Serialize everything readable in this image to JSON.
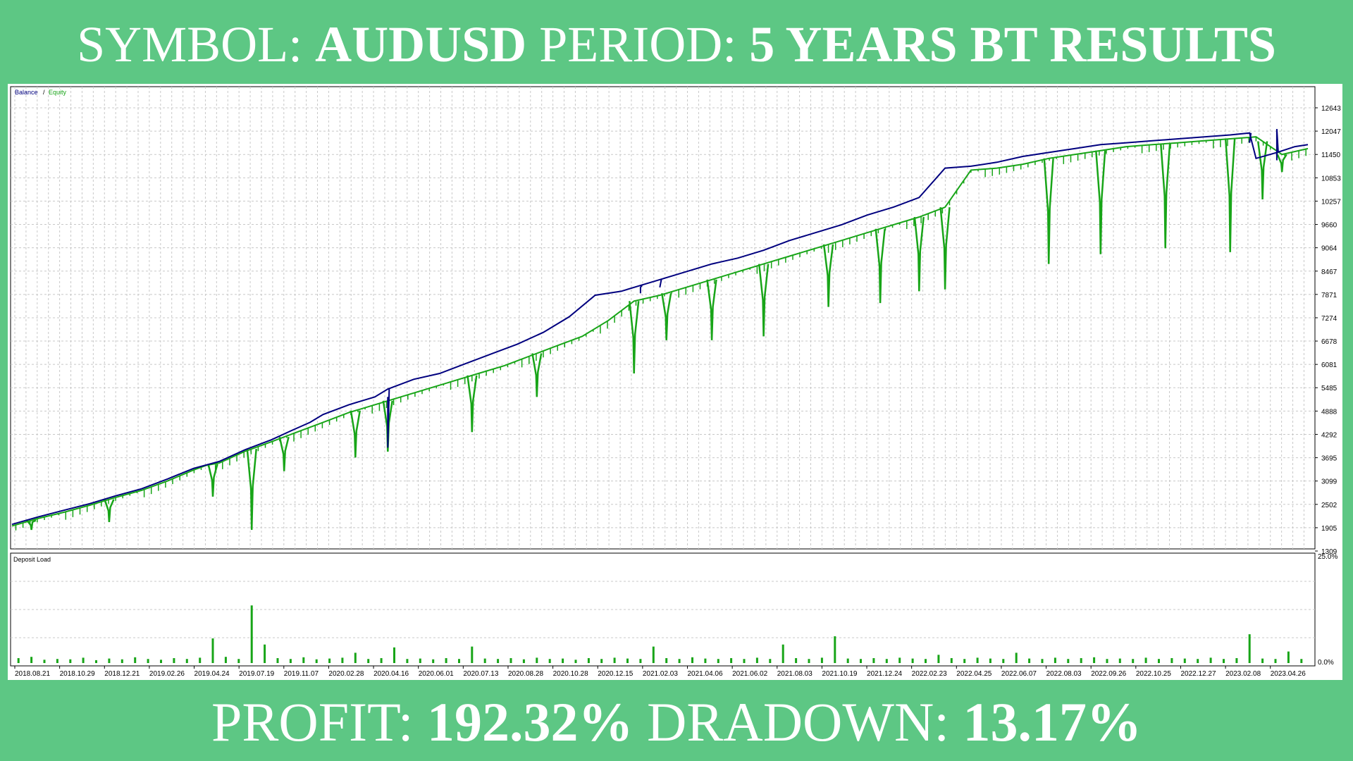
{
  "header": {
    "symbol_label": "SYMBOL:",
    "symbol_value": "AUDUSD",
    "period_label": "PERIOD:",
    "period_value": "5 YEARS BT RESULTS"
  },
  "footer": {
    "profit_label": "PROFIT:",
    "profit_value": "192.32%",
    "drawdown_label": "DRADOWN:",
    "drawdown_value": "13.17%"
  },
  "colors": {
    "background": "#5dc784",
    "balance": "#00007f",
    "equity": "#18a518",
    "deposit_load": "#18a518",
    "grid": "#c8c8c8"
  },
  "chart_data": [
    {
      "type": "line",
      "legend": [
        "Balance",
        "Equity"
      ],
      "legend_separator": "/",
      "legend_position": "top-left",
      "grid": true,
      "y_ticks": [
        12643,
        12047,
        11450,
        10853,
        10257,
        9660,
        9064,
        8467,
        7871,
        7274,
        6678,
        6081,
        5485,
        4888,
        4292,
        3695,
        3099,
        2502,
        1905,
        1309
      ],
      "ylim": [
        1309,
        12643
      ],
      "x_ticks": [
        "2018.08.21",
        "2018.10.29",
        "2018.12.21",
        "2019.02.26",
        "2019.04.24",
        "2019.07.19",
        "2019.11.07",
        "2020.02.28",
        "2020.04.16",
        "2020.06.01",
        "2020.07.13",
        "2020.08.28",
        "2020.10.28",
        "2020.12.15",
        "2021.02.03",
        "2021.04.06",
        "2021.06.02",
        "2021.08.03",
        "2021.10.19",
        "2021.12.24",
        "2022.02.23",
        "2022.04.25",
        "2022.06.07",
        "2022.08.03",
        "2022.09.26",
        "2022.10.25",
        "2022.12.27",
        "2023.02.08",
        "2023.04.26"
      ],
      "series": [
        {
          "name": "Balance",
          "x": [
            0,
            2,
            4,
            6,
            8,
            10,
            12,
            14,
            16,
            18,
            20,
            21.5,
            23,
            24,
            26,
            28,
            29,
            31,
            33,
            35,
            37,
            39,
            41,
            43,
            45,
            47,
            48.5,
            50,
            52,
            54,
            56,
            58,
            60,
            62,
            64,
            66,
            68,
            70,
            72,
            74,
            76,
            78,
            80,
            82,
            84,
            86,
            88,
            90,
            92,
            94,
            95.5,
            96,
            97.6,
            99,
            100
          ],
          "values": [
            1990,
            2180,
            2350,
            2520,
            2720,
            2900,
            3150,
            3420,
            3600,
            3900,
            4150,
            4380,
            4600,
            4800,
            5050,
            5250,
            5450,
            5700,
            5850,
            6100,
            6350,
            6600,
            6900,
            7300,
            7850,
            7950,
            8100,
            8250,
            8450,
            8650,
            8800,
            9000,
            9250,
            9450,
            9650,
            9900,
            10100,
            10350,
            11100,
            11150,
            11250,
            11400,
            11500,
            11600,
            11700,
            11750,
            11800,
            11850,
            11900,
            11950,
            12000,
            11350,
            11500,
            11650,
            11700
          ],
          "spikes": [
            [
              29,
              3950
            ],
            [
              48.5,
              8050
            ],
            [
              50,
              8070
            ],
            [
              95.5,
              11750
            ],
            [
              97.6,
              12100
            ]
          ]
        },
        {
          "name": "Equity",
          "x": [
            0,
            2,
            4,
            6,
            8,
            10,
            12,
            14,
            15,
            16,
            18,
            20,
            22,
            24,
            26,
            28,
            30,
            32,
            34,
            36,
            38,
            40,
            42,
            44,
            46,
            48,
            50,
            52,
            54,
            56,
            58,
            60,
            62,
            64,
            66,
            68,
            70,
            72,
            74,
            76,
            78,
            80,
            82,
            84,
            86,
            88,
            90,
            92,
            94,
            96,
            98,
            100
          ],
          "values": [
            1950,
            2140,
            2300,
            2480,
            2680,
            2860,
            3100,
            3380,
            3500,
            3560,
            3860,
            4100,
            4350,
            4600,
            4850,
            5050,
            5250,
            5450,
            5650,
            5850,
            6050,
            6300,
            6550,
            6800,
            7200,
            7700,
            7850,
            8050,
            8250,
            8450,
            8650,
            8850,
            9050,
            9250,
            9450,
            9650,
            9850,
            10100,
            11050,
            11100,
            11200,
            11350,
            11450,
            11550,
            11650,
            11700,
            11750,
            11800,
            11850,
            11900,
            11450,
            11600
          ],
          "drawdown_dips": [
            [
              1.5,
              1850
            ],
            [
              7.5,
              2050
            ],
            [
              15.5,
              2700
            ],
            [
              18.5,
              1850
            ],
            [
              21,
              3350
            ],
            [
              26.5,
              3700
            ],
            [
              29,
              3850
            ],
            [
              35.5,
              4350
            ],
            [
              40.5,
              5250
            ],
            [
              48,
              5850
            ],
            [
              50.5,
              6700
            ],
            [
              54,
              6700
            ],
            [
              58,
              6800
            ],
            [
              63,
              7550
            ],
            [
              67,
              7650
            ],
            [
              70,
              7950
            ],
            [
              72,
              8000
            ],
            [
              80,
              8650
            ],
            [
              84,
              8900
            ],
            [
              89,
              9050
            ],
            [
              94,
              8950
            ],
            [
              96.5,
              10300
            ],
            [
              98,
              11000
            ]
          ]
        }
      ]
    },
    {
      "type": "bar",
      "title": "Deposit Load",
      "y_ticks": [
        "25.0%",
        "0.0%"
      ],
      "ylim": [
        0,
        25
      ],
      "x_range": [
        0,
        100
      ],
      "values": [
        [
          0.5,
          1.2
        ],
        [
          1.5,
          1.5
        ],
        [
          2.5,
          0.8
        ],
        [
          3.5,
          1.0
        ],
        [
          4.5,
          0.9
        ],
        [
          5.5,
          1.3
        ],
        [
          6.5,
          0.7
        ],
        [
          7.5,
          1.1
        ],
        [
          8.5,
          0.9
        ],
        [
          9.5,
          1.4
        ],
        [
          10.5,
          1.0
        ],
        [
          11.5,
          0.8
        ],
        [
          12.5,
          1.2
        ],
        [
          13.5,
          1.0
        ],
        [
          14.5,
          1.3
        ],
        [
          15.5,
          6.0
        ],
        [
          16.5,
          1.5
        ],
        [
          17.5,
          1.0
        ],
        [
          18.5,
          14.0
        ],
        [
          19.5,
          4.5
        ],
        [
          20.5,
          1.2
        ],
        [
          21.5,
          1.0
        ],
        [
          22.5,
          1.4
        ],
        [
          23.5,
          0.9
        ],
        [
          24.5,
          1.1
        ],
        [
          25.5,
          1.3
        ],
        [
          26.5,
          2.5
        ],
        [
          27.5,
          1.0
        ],
        [
          28.5,
          1.2
        ],
        [
          29.5,
          3.8
        ],
        [
          30.5,
          1.0
        ],
        [
          31.5,
          1.1
        ],
        [
          32.5,
          0.9
        ],
        [
          33.5,
          1.2
        ],
        [
          34.5,
          1.0
        ],
        [
          35.5,
          4.0
        ],
        [
          36.5,
          1.1
        ],
        [
          37.5,
          1.0
        ],
        [
          38.5,
          1.2
        ],
        [
          39.5,
          0.9
        ],
        [
          40.5,
          1.3
        ],
        [
          41.5,
          1.0
        ],
        [
          42.5,
          1.1
        ],
        [
          43.5,
          0.8
        ],
        [
          44.5,
          1.2
        ],
        [
          45.5,
          1.0
        ],
        [
          46.5,
          1.3
        ],
        [
          47.5,
          1.1
        ],
        [
          48.5,
          1.0
        ],
        [
          49.5,
          4.0
        ],
        [
          50.5,
          1.2
        ],
        [
          51.5,
          1.0
        ],
        [
          52.5,
          1.4
        ],
        [
          53.5,
          1.1
        ],
        [
          54.5,
          1.0
        ],
        [
          55.5,
          1.2
        ],
        [
          56.5,
          1.0
        ],
        [
          57.5,
          1.3
        ],
        [
          58.5,
          1.0
        ],
        [
          59.5,
          4.5
        ],
        [
          60.5,
          1.2
        ],
        [
          61.5,
          1.0
        ],
        [
          62.5,
          1.3
        ],
        [
          63.5,
          6.5
        ],
        [
          64.5,
          1.1
        ],
        [
          65.5,
          1.0
        ],
        [
          66.5,
          1.2
        ],
        [
          67.5,
          1.0
        ],
        [
          68.5,
          1.3
        ],
        [
          69.5,
          1.1
        ],
        [
          70.5,
          1.0
        ],
        [
          71.5,
          2.0
        ],
        [
          72.5,
          1.2
        ],
        [
          73.5,
          1.0
        ],
        [
          74.5,
          1.3
        ],
        [
          75.5,
          1.1
        ],
        [
          76.5,
          1.0
        ],
        [
          77.5,
          2.5
        ],
        [
          78.5,
          1.1
        ],
        [
          79.5,
          1.0
        ],
        [
          80.5,
          1.3
        ],
        [
          81.5,
          1.0
        ],
        [
          82.5,
          1.2
        ],
        [
          83.5,
          1.4
        ],
        [
          84.5,
          1.0
        ],
        [
          85.5,
          1.1
        ],
        [
          86.5,
          1.0
        ],
        [
          87.5,
          1.3
        ],
        [
          88.5,
          1.0
        ],
        [
          89.5,
          1.2
        ],
        [
          90.5,
          1.1
        ],
        [
          91.5,
          1.0
        ],
        [
          92.5,
          1.3
        ],
        [
          93.5,
          1.0
        ],
        [
          94.5,
          1.2
        ],
        [
          95.5,
          7.0
        ],
        [
          96.5,
          1.1
        ],
        [
          97.5,
          1.0
        ],
        [
          98.5,
          2.8
        ],
        [
          99.5,
          1.0
        ]
      ]
    }
  ]
}
